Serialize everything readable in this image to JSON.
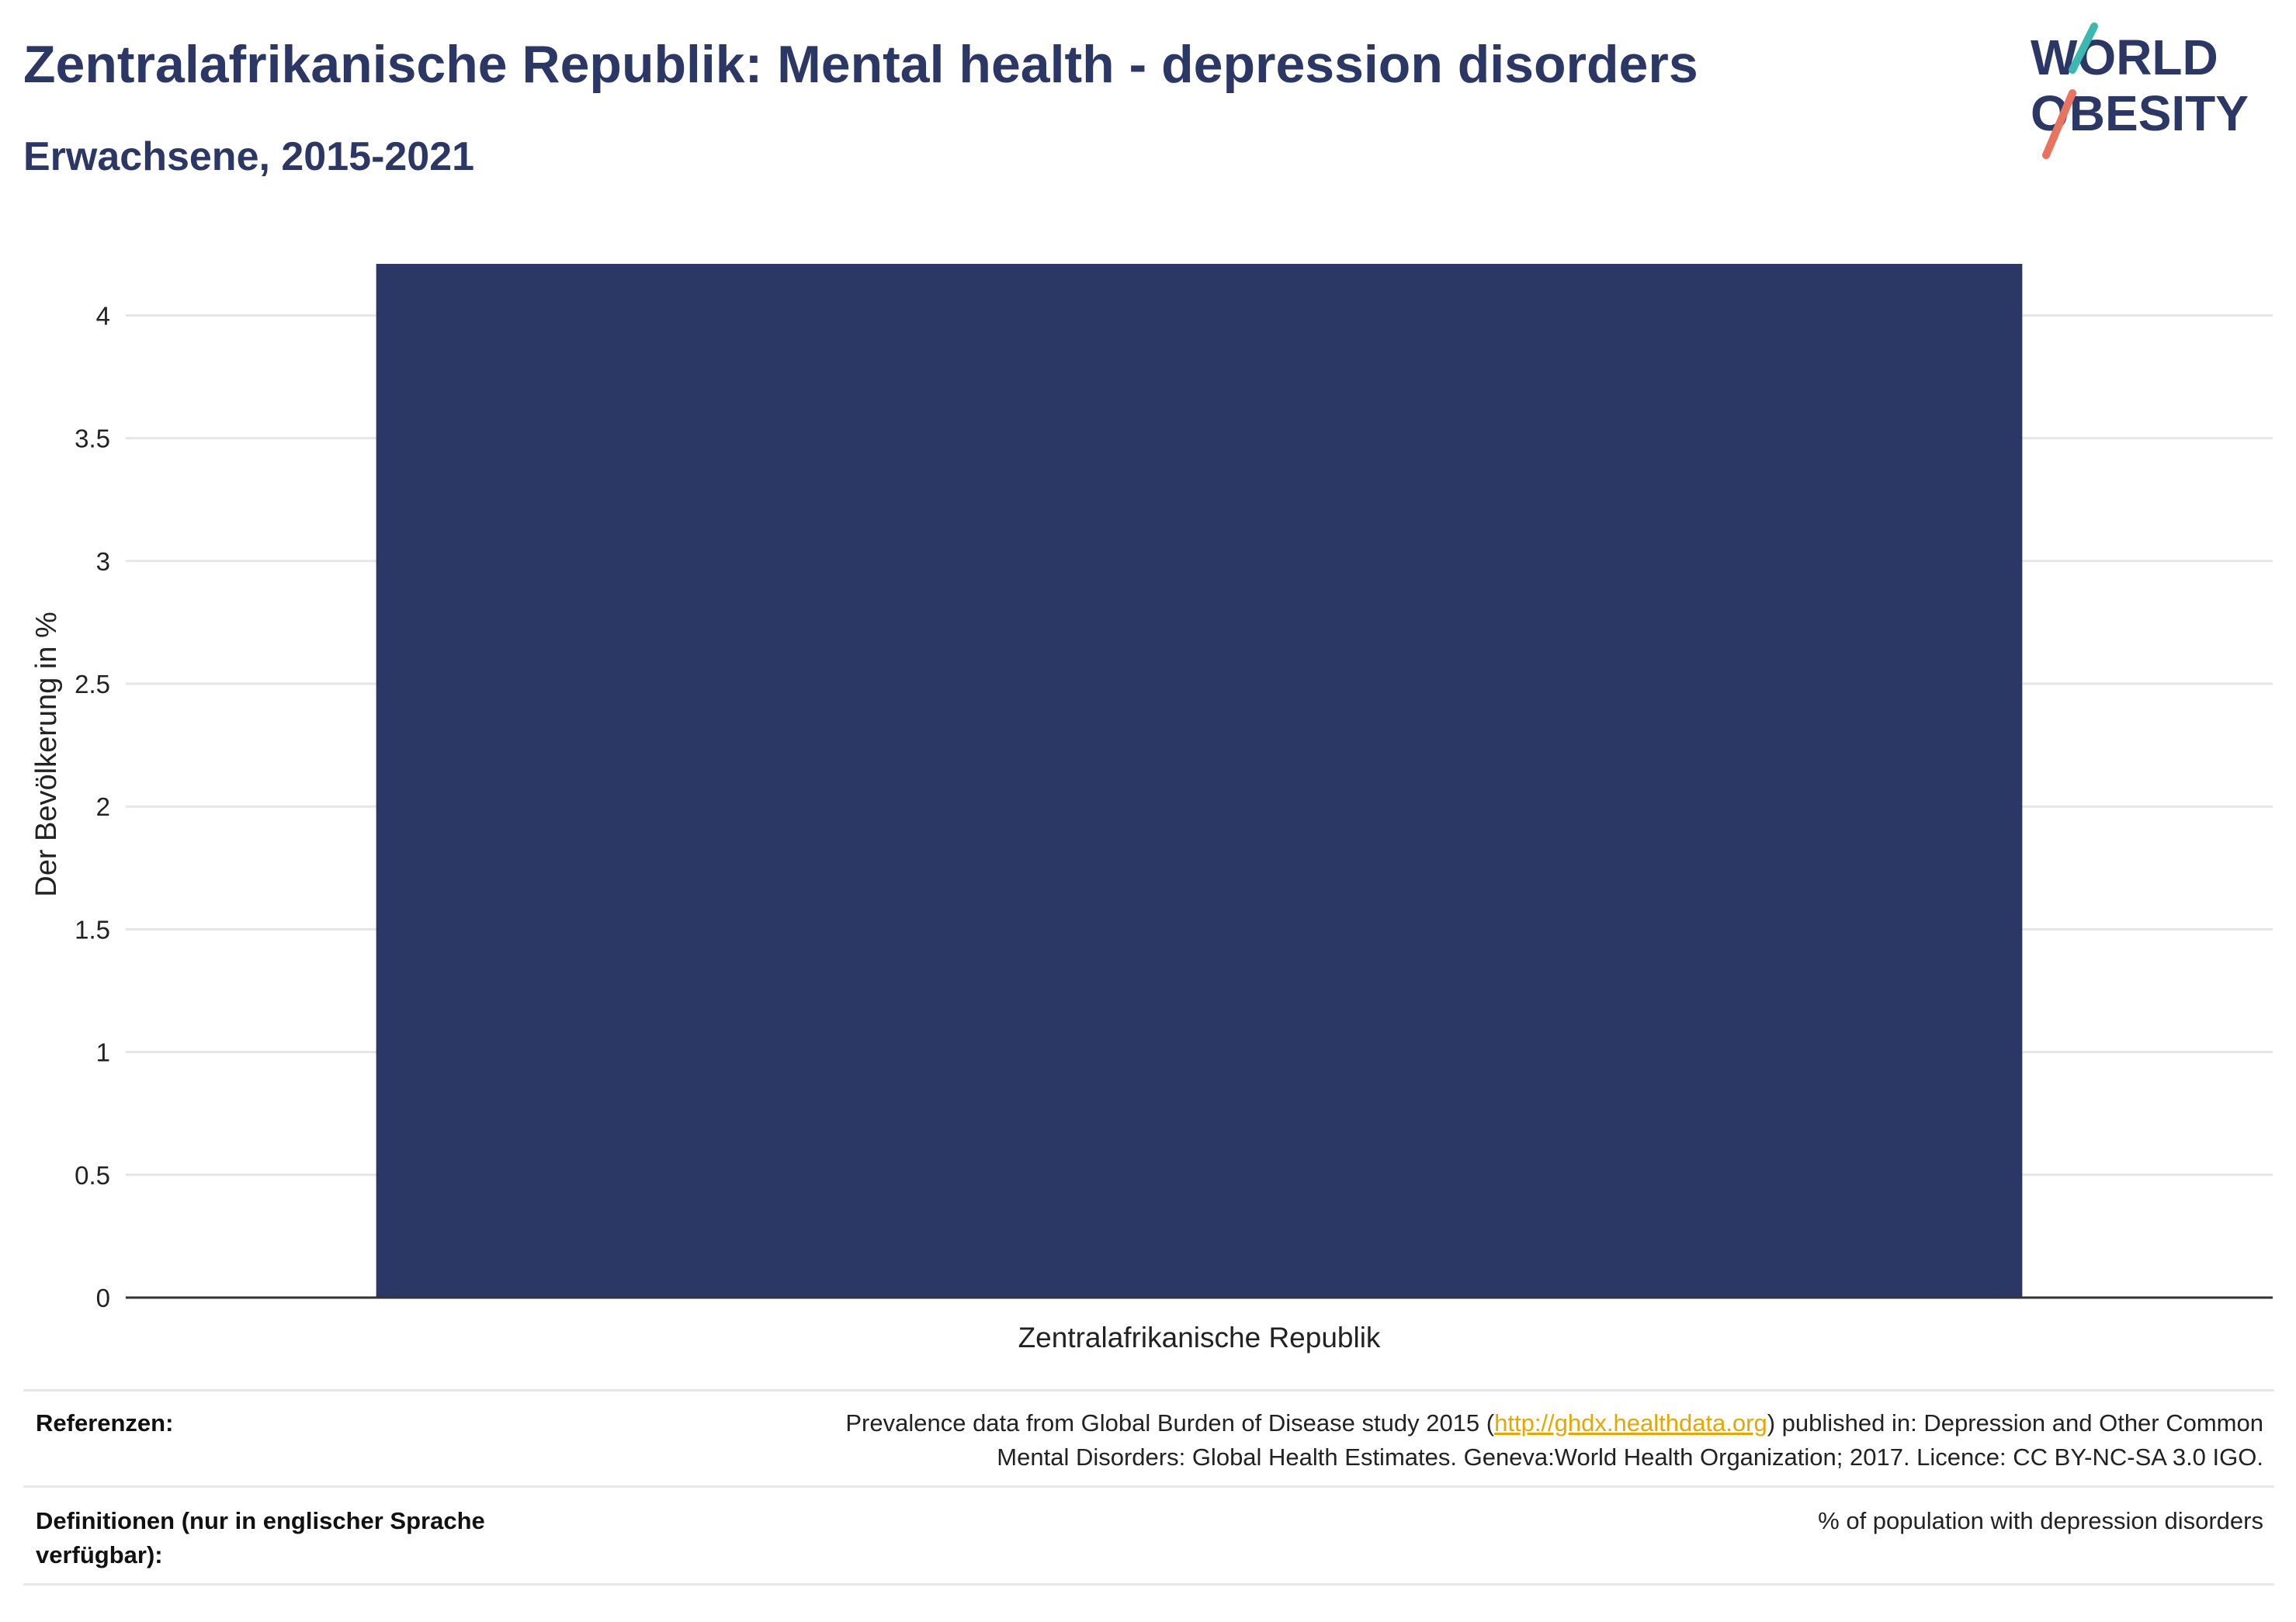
{
  "header": {
    "title": "Zentralafrikanische Republik: Mental health - depression disorders",
    "subtitle": "Erwachsene, 2015-2021"
  },
  "logo": {
    "line1": "WORLD",
    "line2": "OBESITY",
    "text_color": "#2b3764",
    "stroke_teal": "#3bb8b0",
    "stroke_coral": "#e8735f"
  },
  "chart_data": {
    "type": "bar",
    "categories": [
      "Zentralafrikanische Republik"
    ],
    "values": [
      4.21
    ],
    "ylabel": "Der Bevölkerung in %",
    "xlabel": "",
    "ylim": [
      0,
      4.21
    ],
    "yticks": [
      0,
      0.5,
      1,
      1.5,
      2,
      2.5,
      3,
      3.5,
      4
    ],
    "ytick_labels": [
      "0",
      "0.5",
      "1",
      "1.5",
      "2",
      "2.5",
      "3",
      "3.5",
      "4"
    ],
    "bar_color": "#2b3764",
    "grid": true
  },
  "footer": {
    "references_label": "Referenzen:",
    "references_before": "Prevalence data from Global Burden of Disease study 2015 (",
    "references_link": "http://ghdx.healthdata.org",
    "references_after_line1": ") published in: Depression and Other Common",
    "references_line2": "Mental Disorders: Global Health Estimates. Geneva:World Health Organization; 2017. Licence: CC BY-NC-SA 3.0 IGO.",
    "definitions_label_line1": "Definitionen (nur in englischer Sprache",
    "definitions_label_line2": "verfügbar):",
    "definitions_text": "% of population with depression disorders"
  }
}
